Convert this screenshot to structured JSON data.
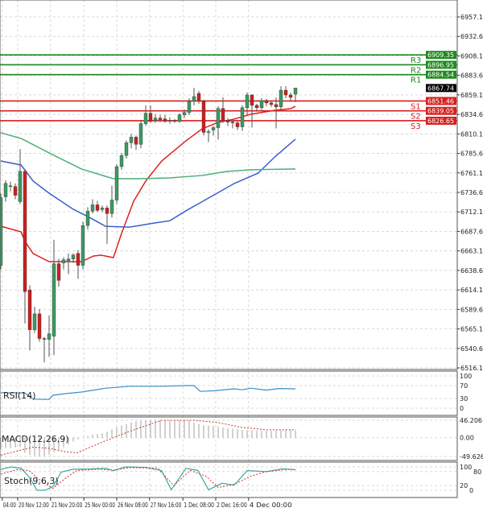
{
  "chart_data": {
    "type": "candlestick",
    "price_axis": {
      "range": [
        6516.1,
        6957.1
      ],
      "ticks": [
        "6957.10",
        "6932.60",
        "6908.10",
        "6883.60",
        "6859.10",
        "6834.60",
        "6810.10",
        "6785.60",
        "6761.10",
        "6736.60",
        "6712.10",
        "6687.60",
        "6663.10",
        "6638.60",
        "6614.10",
        "6589.60",
        "6565.10",
        "6540.60",
        "6516.10"
      ],
      "grid": true
    },
    "time_axis": {
      "ticks": [
        {
          "label": "04:00",
          "bar": 0.3
        },
        {
          "label": "20 Nov 12:00",
          "bar": 3.5
        },
        {
          "label": "21 Nov 20:00",
          "bar": 10.3
        },
        {
          "label": "25 Nov 00:00",
          "bar": 17.2
        },
        {
          "label": "26 Nov 08:00",
          "bar": 24
        },
        {
          "label": "27 Nov 16:00",
          "bar": 30.8
        },
        {
          "label": "1 Dec 08:00",
          "bar": 37.7
        },
        {
          "label": "2 Dec 16:00",
          "bar": 44.5
        },
        {
          "label": "4 Dec 00:00",
          "bar": 51.3
        }
      ]
    },
    "colors": {
      "bull": "#3c9a62",
      "bear": "#cc1f1f",
      "ma_fast": "#e02020",
      "ma_mid": "#3a5fc8",
      "ma_slow": "#4caf7a",
      "support": "#d81e1e",
      "resistance": "#1e8a1e",
      "current": "#000000"
    },
    "candles_ohlc": [
      [
        6645,
        6735,
        6640,
        6730
      ],
      [
        6731,
        6752,
        6725,
        6748
      ],
      [
        6744,
        6750,
        6738,
        6745
      ],
      [
        6744,
        6748,
        6728,
        6733
      ],
      [
        6725,
        6791,
        6722,
        6763
      ],
      [
        6763,
        6766,
        6572,
        6612
      ],
      [
        6614,
        6620,
        6538,
        6564
      ],
      [
        6564,
        6593,
        6560,
        6584
      ],
      [
        6584,
        6590,
        6549,
        6553
      ],
      [
        6553,
        6555,
        6523,
        6552
      ],
      [
        6552,
        6582,
        6530,
        6559
      ],
      [
        6556,
        6677,
        6532,
        6647
      ],
      [
        6647,
        6653,
        6618,
        6626
      ],
      [
        6648,
        6655,
        6640,
        6652
      ],
      [
        6651,
        6660,
        6634,
        6653
      ],
      [
        6653,
        6660,
        6648,
        6658
      ],
      [
        6660,
        6664,
        6628,
        6645
      ],
      [
        6645,
        6700,
        6640,
        6695
      ],
      [
        6695,
        6718,
        6690,
        6713
      ],
      [
        6713,
        6728,
        6710,
        6721
      ],
      [
        6721,
        6726,
        6712,
        6714
      ],
      [
        6715,
        6720,
        6712,
        6717
      ],
      [
        6717,
        6720,
        6672,
        6710
      ],
      [
        6710,
        6745,
        6705,
        6727
      ],
      [
        6727,
        6772,
        6722,
        6769
      ],
      [
        6769,
        6786,
        6765,
        6783
      ],
      [
        6783,
        6802,
        6779,
        6799
      ],
      [
        6799,
        6810,
        6792,
        6806
      ],
      [
        6806,
        6808,
        6790,
        6797
      ],
      [
        6797,
        6826,
        6792,
        6823
      ],
      [
        6823,
        6846,
        6820,
        6836
      ],
      [
        6836,
        6846,
        6824,
        6826
      ],
      [
        6827,
        6835,
        6824,
        6830
      ],
      [
        6830,
        6834,
        6825,
        6828
      ],
      [
        6829,
        6834,
        6824,
        6826
      ],
      [
        6826,
        6831,
        6823,
        6827
      ],
      [
        6827,
        6829,
        6824,
        6826
      ],
      [
        6826,
        6836,
        6824,
        6834
      ],
      [
        6834,
        6841,
        6830,
        6837
      ],
      [
        6837,
        6855,
        6834,
        6851
      ],
      [
        6851,
        6868,
        6846,
        6857
      ],
      [
        6861,
        6864,
        6848,
        6851
      ],
      [
        6851,
        6853,
        6808,
        6812
      ],
      [
        6813,
        6816,
        6800,
        6813
      ],
      [
        6815,
        6820,
        6808,
        6818
      ],
      [
        6818,
        6845,
        6803,
        6842
      ],
      [
        6842,
        6856,
        6824,
        6827
      ],
      [
        6827,
        6830,
        6820,
        6825
      ],
      [
        6825,
        6828,
        6817,
        6824
      ],
      [
        6824,
        6826,
        6815,
        6819
      ],
      [
        6819,
        6846,
        6814,
        6843
      ],
      [
        6843,
        6862,
        6834,
        6859
      ],
      [
        6859,
        6860,
        6818,
        6846
      ],
      [
        6846,
        6848,
        6838,
        6843
      ],
      [
        6843,
        6855,
        6840,
        6852
      ],
      [
        6852,
        6854,
        6845,
        6849
      ],
      [
        6849,
        6851,
        6844,
        6847
      ],
      [
        6847,
        6856,
        6817,
        6844
      ],
      [
        6844,
        6870,
        6840,
        6865
      ],
      [
        6865,
        6870,
        6855,
        6859
      ],
      [
        6859,
        6862,
        6852,
        6856
      ],
      [
        6860,
        6868,
        6850,
        6867.74
      ]
    ],
    "moving_averages": [
      {
        "color_key": "ma_fast",
        "points": [
          [
            0,
            6694.1
          ],
          [
            4.2,
            6687
          ],
          [
            5,
            6675
          ],
          [
            6.7,
            6659.7
          ],
          [
            10,
            6649.6
          ],
          [
            16.7,
            6649.6
          ],
          [
            19.2,
            6656.7
          ],
          [
            20.8,
            6657.7
          ],
          [
            23.3,
            6654.7
          ],
          [
            25,
            6685
          ],
          [
            27.5,
            6725.5
          ],
          [
            30,
            6750.8
          ],
          [
            33.3,
            6776
          ],
          [
            38.3,
            6801.3
          ],
          [
            41.7,
            6816.5
          ],
          [
            45,
            6824.6
          ],
          [
            48.3,
            6828.7
          ],
          [
            51.7,
            6834.7
          ],
          [
            56.7,
            6839.8
          ],
          [
            60,
            6841.8
          ],
          [
            61,
            6844.8
          ]
        ]
      },
      {
        "color_key": "ma_mid",
        "points": [
          [
            0,
            6776
          ],
          [
            4.2,
            6771
          ],
          [
            6.7,
            6750.8
          ],
          [
            10,
            6735.6
          ],
          [
            15,
            6715.4
          ],
          [
            18.3,
            6705.3
          ],
          [
            21.7,
            6694
          ],
          [
            26.7,
            6693
          ],
          [
            31.7,
            6698
          ],
          [
            35,
            6701
          ],
          [
            38.3,
            6713.4
          ],
          [
            43.3,
            6730.5
          ],
          [
            48.3,
            6747.7
          ],
          [
            53.3,
            6760.9
          ],
          [
            56.7,
            6781.1
          ],
          [
            61,
            6803.4
          ]
        ]
      },
      {
        "color_key": "ma_slow",
        "points": [
          [
            0,
            6811.5
          ],
          [
            4.2,
            6804.4
          ],
          [
            10,
            6786.2
          ],
          [
            16.7,
            6766
          ],
          [
            23.3,
            6753.8
          ],
          [
            28.3,
            6753.8
          ],
          [
            35,
            6754.8
          ],
          [
            41.7,
            6757.9
          ],
          [
            46.7,
            6762.9
          ],
          [
            51.7,
            6765
          ],
          [
            61,
            6766
          ]
        ]
      }
    ],
    "levels": [
      {
        "name": "R3",
        "value": 6909.35,
        "label": "6909.35",
        "kind": "resistance"
      },
      {
        "name": "R2",
        "value": 6896.95,
        "label": "6896.95",
        "kind": "resistance"
      },
      {
        "name": "R1",
        "value": 6884.54,
        "label": "6884.54",
        "kind": "resistance"
      },
      {
        "name": "S1",
        "value": 6851.46,
        "label": "6851.46",
        "kind": "support"
      },
      {
        "name": "S2",
        "value": 6839.05,
        "label": "6839.05",
        "kind": "support"
      },
      {
        "name": "S3",
        "value": 6826.65,
        "label": "6826.65",
        "kind": "support"
      }
    ],
    "current_price": {
      "value": 6867.74,
      "label": "6867.74"
    },
    "rsi": {
      "title": "RSI(14)",
      "range": [
        0,
        100
      ],
      "ticks": [
        "100",
        "70",
        "30",
        "0"
      ],
      "tick_values": [
        100,
        70,
        30,
        0
      ],
      "color": "#3b8fc4",
      "points": [
        [
          0,
          48
        ],
        [
          5,
          47
        ],
        [
          6.7,
          28
        ],
        [
          10,
          27
        ],
        [
          10.8,
          40
        ],
        [
          13.3,
          45
        ],
        [
          16.7,
          50
        ],
        [
          21.7,
          62
        ],
        [
          26.7,
          68
        ],
        [
          33.3,
          68
        ],
        [
          38.3,
          70
        ],
        [
          40,
          70
        ],
        [
          41.3,
          52
        ],
        [
          44.2,
          54
        ],
        [
          48.3,
          60
        ],
        [
          50,
          57
        ],
        [
          51.7,
          62
        ],
        [
          55,
          56
        ],
        [
          57.5,
          61
        ],
        [
          61,
          60
        ]
      ]
    },
    "macd": {
      "title": "MACD(12,26,9)",
      "range": [
        -49.626,
        46.206
      ],
      "ticks": [
        "46.206",
        "0.00",
        "-49.626"
      ],
      "tick_values": [
        46.206,
        0,
        -49.626
      ],
      "histogram": [
        -30,
        -28,
        -27,
        -26,
        -25,
        -40,
        -45,
        -48,
        -50,
        -49,
        -45,
        -38,
        -32,
        -25,
        -18,
        -10,
        -4,
        0,
        4,
        8,
        10,
        12,
        16,
        22,
        27,
        32,
        36,
        40,
        43,
        45,
        46,
        46,
        46,
        46,
        45,
        44,
        44,
        45,
        46,
        44,
        40,
        36,
        33,
        32,
        31,
        29,
        27,
        25,
        24,
        22,
        21,
        20,
        20,
        19,
        19,
        18,
        18,
        19,
        19,
        20,
        20,
        20
      ],
      "signal": [
        [
          0,
          -46
        ],
        [
          6.7,
          -25
        ],
        [
          10,
          -28
        ],
        [
          13.3,
          -37
        ],
        [
          15.8,
          -40
        ],
        [
          21.7,
          -8
        ],
        [
          26.7,
          17
        ],
        [
          33.3,
          46
        ],
        [
          40,
          46
        ],
        [
          45,
          40
        ],
        [
          50,
          27
        ],
        [
          55,
          21
        ],
        [
          61,
          21
        ]
      ]
    },
    "stoch": {
      "title": "Stoch(9,6,3)",
      "range": [
        0,
        100
      ],
      "ticks": [
        "100",
        "80",
        "20",
        "0"
      ],
      "tick_values": [
        100,
        80,
        20,
        0
      ],
      "main": [
        [
          0,
          90
        ],
        [
          2.2,
          100
        ],
        [
          4.2,
          94
        ],
        [
          5.8,
          59
        ],
        [
          7.5,
          0
        ],
        [
          9.2,
          0
        ],
        [
          10.8,
          16
        ],
        [
          12.5,
          78
        ],
        [
          15,
          90
        ],
        [
          18.3,
          91
        ],
        [
          21.7,
          94
        ],
        [
          23.3,
          84
        ],
        [
          25.8,
          100
        ],
        [
          30,
          98
        ],
        [
          33.3,
          84
        ],
        [
          35.3,
          2
        ],
        [
          38.3,
          94
        ],
        [
          40.8,
          85
        ],
        [
          43,
          2
        ],
        [
          45.8,
          30
        ],
        [
          48.3,
          22
        ],
        [
          51,
          84
        ],
        [
          55,
          80
        ],
        [
          58.3,
          92
        ],
        [
          61,
          88
        ]
      ],
      "signal": [
        [
          0,
          70
        ],
        [
          3.3,
          88
        ],
        [
          5.8,
          85
        ],
        [
          8.3,
          40
        ],
        [
          10.8,
          8
        ],
        [
          13.3,
          50
        ],
        [
          15.8,
          85
        ],
        [
          20,
          90
        ],
        [
          23.3,
          86
        ],
        [
          26.7,
          97
        ],
        [
          32.5,
          95
        ],
        [
          35.8,
          20
        ],
        [
          39.2,
          85
        ],
        [
          42.5,
          60
        ],
        [
          45,
          12
        ],
        [
          48.3,
          25
        ],
        [
          51.7,
          60
        ],
        [
          55,
          80
        ],
        [
          60,
          90
        ],
        [
          61,
          88
        ]
      ]
    }
  }
}
